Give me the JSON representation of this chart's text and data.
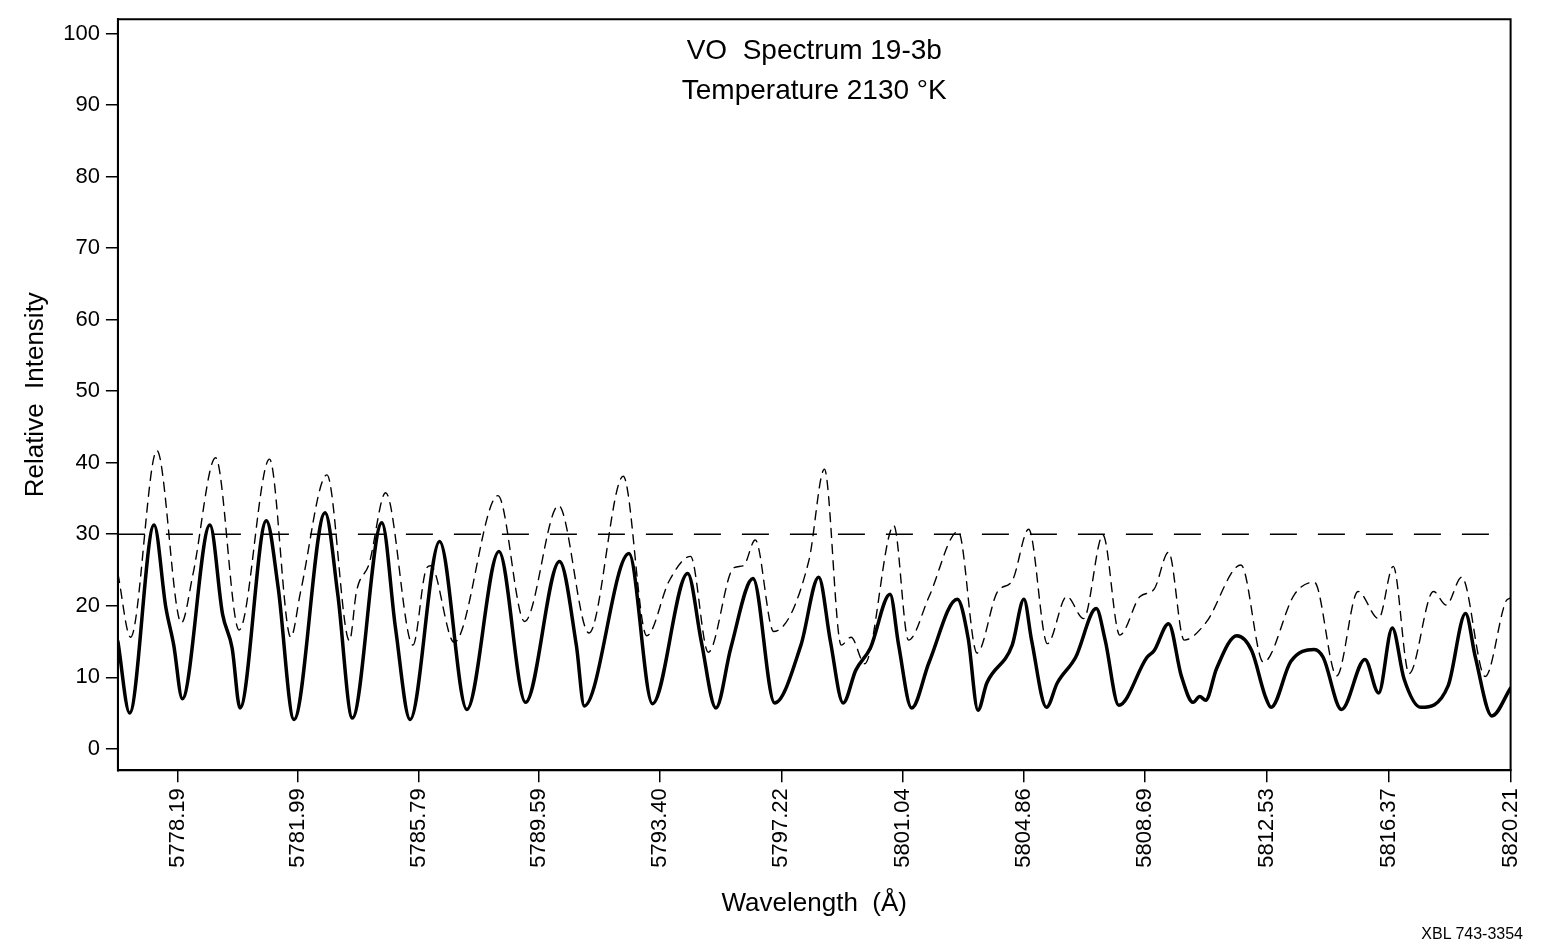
{
  "chart_data": {
    "type": "line",
    "title": "VO  Spectrum 19-3b",
    "subtitle": "Temperature 2130 °K",
    "xlabel": "Wavelength  (Å)",
    "ylabel": "Relative  Intensity",
    "annotations": [
      "XBL 743-3354"
    ],
    "xlim": [
      5776.31,
      5820.21
    ],
    "ylim": [
      -3,
      102
    ],
    "xticks": [
      5778.19,
      5781.99,
      5785.79,
      5789.59,
      {
        "value": 5793.4,
        "label": "5793.40"
      },
      5797.22,
      5801.04,
      5804.86,
      5808.69,
      5812.53,
      5816.37,
      5820.21
    ],
    "yticks": [
      0,
      10,
      20,
      30,
      40,
      50,
      60,
      70,
      80,
      90,
      100
    ],
    "marker": "none",
    "ref_lines": [
      {
        "axis": "y",
        "value": 30,
        "line_style": "dashed",
        "color": "#000000"
      }
    ],
    "series": [
      {
        "color": "#000000",
        "line_style": "solid",
        "x": [
          5776.31,
          5776.68,
          5777.45,
          5777.82,
          5778.07,
          5778.34,
          5779.21,
          5779.61,
          5779.91,
          5780.16,
          5780.99,
          5781.36,
          5781.86,
          5782.84,
          5783.24,
          5783.7,
          5784.63,
          5785.06,
          5785.52,
          5786.45,
          5787.31,
          5788.32,
          5789.16,
          5790.23,
          5790.76,
          5791.01,
          5792.42,
          5793.16,
          5794.27,
          5794.7,
          5795.16,
          5795.63,
          5796.33,
          5797.01,
          5797.84,
          5798.4,
          5798.77,
          5799.17,
          5799.57,
          5800.03,
          5800.65,
          5800.92,
          5801.33,
          5801.88,
          5802.77,
          5803.11,
          5803.42,
          5803.7,
          5804.5,
          5804.87,
          5805.11,
          5805.58,
          5805.92,
          5806.5,
          5807.15,
          5807.43,
          5807.86,
          5808.75,
          5808.97,
          5809.43,
          5809.83,
          5810.2,
          5810.41,
          5810.6,
          5810.94,
          5811.58,
          5812.05,
          5812.48,
          5812.66,
          5813.28,
          5814.02,
          5814.3,
          5814.88,
          5815.62,
          5816.05,
          5816.48,
          5816.85,
          5817.38,
          5818.24,
          5818.79,
          5819.1,
          5819.62,
          5820.21
        ],
        "values": [
          15.0,
          5.0,
          31.3,
          19.8,
          14.5,
          7.0,
          31.3,
          18.8,
          14.1,
          5.7,
          31.9,
          22.6,
          4.1,
          33.0,
          21.6,
          4.3,
          31.6,
          16.9,
          4.1,
          29.0,
          5.5,
          27.6,
          6.5,
          26.2,
          14.5,
          6.0,
          27.3,
          6.3,
          24.5,
          15.0,
          5.7,
          14.1,
          23.8,
          6.4,
          14.5,
          24.0,
          15.0,
          6.4,
          11.0,
          14.1,
          21.6,
          14.5,
          5.7,
          12.1,
          20.9,
          15.5,
          5.4,
          9.2,
          14.5,
          20.9,
          15.2,
          5.8,
          9.2,
          12.8,
          19.6,
          15.2,
          6.1,
          12.8,
          13.7,
          17.5,
          10.2,
          6.5,
          7.3,
          6.8,
          11.2,
          15.8,
          13.7,
          7.3,
          5.8,
          12.2,
          13.9,
          12.8,
          5.5,
          12.5,
          7.8,
          16.9,
          9.8,
          5.8,
          8.8,
          18.9,
          12.8,
          4.6,
          8.5
        ]
      },
      {
        "color": "#000000",
        "line_style": "dashed",
        "x": [
          5776.31,
          5776.71,
          5777.54,
          5778.31,
          5778.68,
          5779.39,
          5780.13,
          5781.09,
          5781.76,
          5782.07,
          5782.9,
          5783.61,
          5783.83,
          5784.23,
          5784.75,
          5785.61,
          5786.01,
          5786.17,
          5786.91,
          5788.29,
          5789.13,
          5790.2,
          5791.16,
          5792.24,
          5792.98,
          5793.69,
          5794.36,
          5794.92,
          5795.72,
          5796.03,
          5796.4,
          5796.98,
          5798.09,
          5798.58,
          5799.11,
          5799.42,
          5799.85,
          5800.77,
          5801.23,
          5801.88,
          5802.8,
          5803.39,
          5804.04,
          5804.5,
          5805.02,
          5805.61,
          5806.22,
          5806.75,
          5807.36,
          5807.89,
          5808.53,
          5808.97,
          5809.43,
          5809.92,
          5810.6,
          5811.71,
          5812.42,
          5813.4,
          5814.02,
          5814.73,
          5815.4,
          5816.05,
          5816.51,
          5817.01,
          5817.78,
          5818.18,
          5818.67,
          5819.41,
          5820.06,
          5820.21
        ],
        "values": [
          24.5,
          15.6,
          41.7,
          17.6,
          24.5,
          40.7,
          16.6,
          40.5,
          15.6,
          22.0,
          38.3,
          15.1,
          22.0,
          25.9,
          35.8,
          14.5,
          24.9,
          25.6,
          14.9,
          35.4,
          17.8,
          34.0,
          16.2,
          38.1,
          15.8,
          23.5,
          26.9,
          13.5,
          25.3,
          25.6,
          29.2,
          16.4,
          26.3,
          39.1,
          14.5,
          15.6,
          11.9,
          31.2,
          15.2,
          21.3,
          30.4,
          13.4,
          22.0,
          23.5,
          30.7,
          14.7,
          21.3,
          18.2,
          29.9,
          15.9,
          21.3,
          22.3,
          27.5,
          15.2,
          17.6,
          25.7,
          12.1,
          21.6,
          23.3,
          10.2,
          22.0,
          18.2,
          25.5,
          10.5,
          22.0,
          20.1,
          24.0,
          10.1,
          20.6,
          21.1
        ]
      }
    ]
  }
}
